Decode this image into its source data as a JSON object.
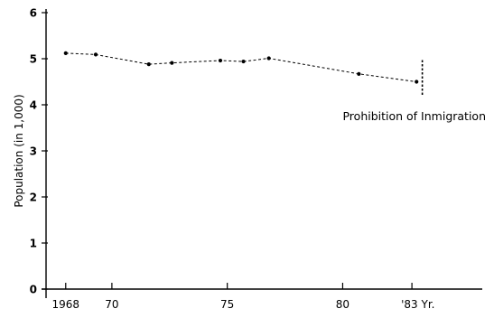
{
  "chart_data": {
    "type": "line",
    "ylabel": "Population (in 1,000)",
    "ylim": [
      0,
      6
    ],
    "yticks": [
      0,
      1,
      2,
      3,
      4,
      5,
      6
    ],
    "xlim": [
      1967.5,
      1985.5
    ],
    "xticks": [
      {
        "value": 1968,
        "label": "1968"
      },
      {
        "value": 1970,
        "label": "70"
      },
      {
        "value": 1975,
        "label": "75"
      },
      {
        "value": 1980,
        "label": "80"
      },
      {
        "value": 1983,
        "label": "'83 Yr."
      }
    ],
    "grid": false,
    "series": [
      {
        "x": [
          1968,
          1969.3,
          1971.6,
          1972.6,
          1974.7,
          1975.7,
          1976.8,
          1980.7,
          1983.2
        ],
        "y": [
          5.12,
          5.09,
          4.88,
          4.91,
          4.96,
          4.94,
          5.01,
          4.67,
          4.5
        ]
      }
    ],
    "annotations": [
      {
        "text": "Prohibition of Inmigration",
        "x": 1983.45,
        "y_range": [
          4.18,
          4.97
        ]
      }
    ]
  }
}
